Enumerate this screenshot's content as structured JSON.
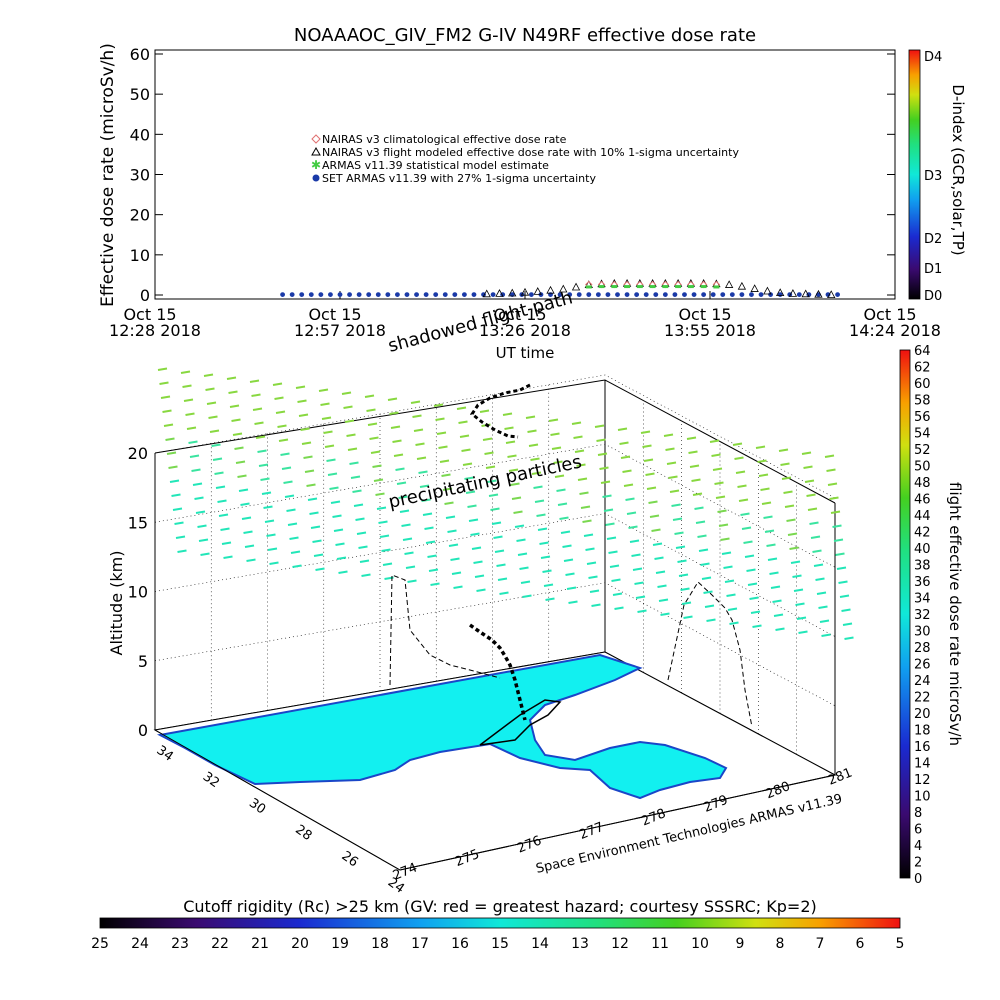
{
  "chart_data": [
    {
      "type": "scatter",
      "title": "NOAAAOC_GIV_FM2 G-IV   N49RF  effective dose rate",
      "ylabel": "Effective dose rate (microSv/h)",
      "xlabel": "UT time",
      "ylim": [
        0,
        60
      ],
      "yticks": [
        "0",
        "10",
        "20",
        "30",
        "40",
        "50",
        "60"
      ],
      "xticks": [
        {
          "line1": "Oct 15",
          "line2": "12:28 2018"
        },
        {
          "line1": "Oct 15",
          "line2": "12:57 2018"
        },
        {
          "line1": "Oct 15",
          "line2": "13:26 2018"
        },
        {
          "line1": "Oct 15",
          "line2": "13:55 2018"
        },
        {
          "line1": "Oct 15",
          "line2": "14:24 2018"
        }
      ],
      "legend": [
        {
          "label": "NAIRAS v3 climatological effective dose rate",
          "color": "#e07070",
          "marker": "diamond"
        },
        {
          "label": "NAIRAS v3 flight modeled effective dose rate with 10% 1-sigma uncertainty",
          "color": "#000000",
          "marker": "triangle"
        },
        {
          "label": "ARMAS v11.39 statistical model estimate",
          "color": "#44cc44",
          "marker": "star"
        },
        {
          "label": "SET ARMAS v11.39 with 27% 1-sigma uncertainty",
          "color": "#1a3aa8",
          "marker": "circle"
        }
      ],
      "right_axis": {
        "label": "D-index (GCR,solar,TP)",
        "ticks": [
          "D0",
          "D1",
          "D2",
          "D3",
          "D4"
        ]
      },
      "series": [
        {
          "name": "NAIRAS v3 flight modeled effective dose rate with 10% 1-sigma uncertainty",
          "x_minutes": [
            52,
            54,
            56,
            58,
            60,
            62,
            64,
            66,
            68,
            70,
            72,
            74,
            76,
            78,
            80,
            82,
            84,
            86,
            88,
            90,
            92,
            94,
            96,
            98,
            100,
            102,
            104,
            106
          ],
          "values": [
            0.3,
            0.4,
            0.5,
            0.7,
            0.9,
            1.2,
            1.5,
            2.0,
            2.6,
            2.8,
            2.9,
            2.9,
            2.9,
            2.9,
            2.9,
            2.9,
            2.9,
            2.9,
            2.8,
            2.6,
            2.2,
            1.6,
            1.0,
            0.6,
            0.4,
            0.3,
            0.2,
            0.1
          ]
        },
        {
          "name": "NAIRAS v3 climatological effective dose rate",
          "x_minutes": [
            68,
            70,
            72,
            74,
            76,
            78,
            80,
            82,
            84,
            86,
            88
          ],
          "values": [
            2.6,
            2.6,
            2.6,
            2.6,
            2.6,
            2.6,
            2.6,
            2.6,
            2.6,
            2.6,
            2.6
          ]
        },
        {
          "name": "ARMAS v11.39 statistical model estimate",
          "x_minutes": [
            68,
            70,
            72,
            74,
            76,
            78,
            80,
            82,
            84,
            86,
            88
          ],
          "values": [
            2.0,
            2.1,
            2.1,
            2.1,
            2.1,
            2.1,
            2.1,
            2.1,
            2.1,
            2.1,
            2.0
          ]
        },
        {
          "name": "SET ARMAS v11.39 with 27% 1-sigma uncertainty",
          "x_min_start": 20,
          "x_min_end": 108,
          "value": 0.1
        }
      ]
    },
    {
      "type": "3d-map",
      "annotations": [
        "shadowed flight path",
        "precipitating particles",
        "Space Environment Technologies ARMAS v11.39"
      ],
      "zlabel": "Altitude (km)",
      "zticks": [
        "0",
        "5",
        "10",
        "15",
        "20"
      ],
      "lat_ticks": [
        "34",
        "32",
        "30",
        "28",
        "26",
        "24"
      ],
      "lon_ticks": [
        "274",
        "275",
        "276",
        "277",
        "278",
        "279",
        "280",
        "281"
      ],
      "colorbar": {
        "label": "flight effective dose rate microSv/h",
        "ticks": [
          "0",
          "2",
          "4",
          "6",
          "8",
          "10",
          "12",
          "14",
          "16",
          "18",
          "20",
          "22",
          "24",
          "26",
          "28",
          "30",
          "32",
          "34",
          "36",
          "38",
          "40",
          "42",
          "44",
          "46",
          "48",
          "50",
          "52",
          "54",
          "56",
          "58",
          "60",
          "62",
          "64"
        ]
      },
      "flight_track_km": [
        0.2,
        2,
        5,
        7,
        9,
        10.5,
        11.5,
        11.8,
        11.8,
        11.5,
        10,
        7,
        4,
        1.5,
        0.2
      ]
    },
    {
      "type": "colorbar",
      "label": "Cutoff rigidity (Rc) >25 km (GV: red = greatest hazard; courtesy SSSRC; Kp=2)",
      "ticks": [
        "25",
        "24",
        "23",
        "22",
        "21",
        "20",
        "19",
        "18",
        "17",
        "16",
        "15",
        "14",
        "13",
        "12",
        "11",
        "10",
        "9",
        "8",
        "7",
        "6",
        "5"
      ]
    }
  ]
}
